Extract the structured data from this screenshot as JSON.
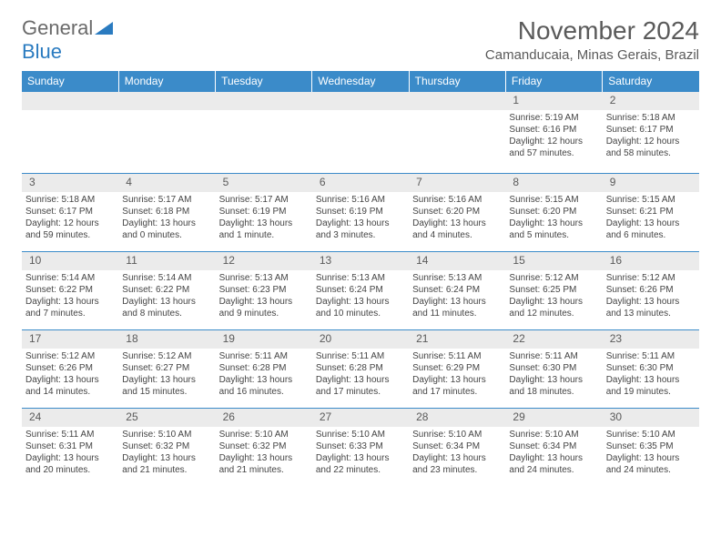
{
  "logo": {
    "text1": "General",
    "text2": "Blue"
  },
  "title": "November 2024",
  "subtitle": "Camanducaia, Minas Gerais, Brazil",
  "colors": {
    "header_bg": "#3b8bc9",
    "header_text": "#ffffff",
    "dayrow_bg": "#ebebeb",
    "border": "#3b8bc9",
    "text": "#444444",
    "logo_gray": "#6a6a6a",
    "logo_blue": "#2a7bc0"
  },
  "day_headers": [
    "Sunday",
    "Monday",
    "Tuesday",
    "Wednesday",
    "Thursday",
    "Friday",
    "Saturday"
  ],
  "weeks": [
    [
      {
        "num": "",
        "sunrise": "",
        "sunset": "",
        "daylight": ""
      },
      {
        "num": "",
        "sunrise": "",
        "sunset": "",
        "daylight": ""
      },
      {
        "num": "",
        "sunrise": "",
        "sunset": "",
        "daylight": ""
      },
      {
        "num": "",
        "sunrise": "",
        "sunset": "",
        "daylight": ""
      },
      {
        "num": "",
        "sunrise": "",
        "sunset": "",
        "daylight": ""
      },
      {
        "num": "1",
        "sunrise": "Sunrise: 5:19 AM",
        "sunset": "Sunset: 6:16 PM",
        "daylight": "Daylight: 12 hours and 57 minutes."
      },
      {
        "num": "2",
        "sunrise": "Sunrise: 5:18 AM",
        "sunset": "Sunset: 6:17 PM",
        "daylight": "Daylight: 12 hours and 58 minutes."
      }
    ],
    [
      {
        "num": "3",
        "sunrise": "Sunrise: 5:18 AM",
        "sunset": "Sunset: 6:17 PM",
        "daylight": "Daylight: 12 hours and 59 minutes."
      },
      {
        "num": "4",
        "sunrise": "Sunrise: 5:17 AM",
        "sunset": "Sunset: 6:18 PM",
        "daylight": "Daylight: 13 hours and 0 minutes."
      },
      {
        "num": "5",
        "sunrise": "Sunrise: 5:17 AM",
        "sunset": "Sunset: 6:19 PM",
        "daylight": "Daylight: 13 hours and 1 minute."
      },
      {
        "num": "6",
        "sunrise": "Sunrise: 5:16 AM",
        "sunset": "Sunset: 6:19 PM",
        "daylight": "Daylight: 13 hours and 3 minutes."
      },
      {
        "num": "7",
        "sunrise": "Sunrise: 5:16 AM",
        "sunset": "Sunset: 6:20 PM",
        "daylight": "Daylight: 13 hours and 4 minutes."
      },
      {
        "num": "8",
        "sunrise": "Sunrise: 5:15 AM",
        "sunset": "Sunset: 6:20 PM",
        "daylight": "Daylight: 13 hours and 5 minutes."
      },
      {
        "num": "9",
        "sunrise": "Sunrise: 5:15 AM",
        "sunset": "Sunset: 6:21 PM",
        "daylight": "Daylight: 13 hours and 6 minutes."
      }
    ],
    [
      {
        "num": "10",
        "sunrise": "Sunrise: 5:14 AM",
        "sunset": "Sunset: 6:22 PM",
        "daylight": "Daylight: 13 hours and 7 minutes."
      },
      {
        "num": "11",
        "sunrise": "Sunrise: 5:14 AM",
        "sunset": "Sunset: 6:22 PM",
        "daylight": "Daylight: 13 hours and 8 minutes."
      },
      {
        "num": "12",
        "sunrise": "Sunrise: 5:13 AM",
        "sunset": "Sunset: 6:23 PM",
        "daylight": "Daylight: 13 hours and 9 minutes."
      },
      {
        "num": "13",
        "sunrise": "Sunrise: 5:13 AM",
        "sunset": "Sunset: 6:24 PM",
        "daylight": "Daylight: 13 hours and 10 minutes."
      },
      {
        "num": "14",
        "sunrise": "Sunrise: 5:13 AM",
        "sunset": "Sunset: 6:24 PM",
        "daylight": "Daylight: 13 hours and 11 minutes."
      },
      {
        "num": "15",
        "sunrise": "Sunrise: 5:12 AM",
        "sunset": "Sunset: 6:25 PM",
        "daylight": "Daylight: 13 hours and 12 minutes."
      },
      {
        "num": "16",
        "sunrise": "Sunrise: 5:12 AM",
        "sunset": "Sunset: 6:26 PM",
        "daylight": "Daylight: 13 hours and 13 minutes."
      }
    ],
    [
      {
        "num": "17",
        "sunrise": "Sunrise: 5:12 AM",
        "sunset": "Sunset: 6:26 PM",
        "daylight": "Daylight: 13 hours and 14 minutes."
      },
      {
        "num": "18",
        "sunrise": "Sunrise: 5:12 AM",
        "sunset": "Sunset: 6:27 PM",
        "daylight": "Daylight: 13 hours and 15 minutes."
      },
      {
        "num": "19",
        "sunrise": "Sunrise: 5:11 AM",
        "sunset": "Sunset: 6:28 PM",
        "daylight": "Daylight: 13 hours and 16 minutes."
      },
      {
        "num": "20",
        "sunrise": "Sunrise: 5:11 AM",
        "sunset": "Sunset: 6:28 PM",
        "daylight": "Daylight: 13 hours and 17 minutes."
      },
      {
        "num": "21",
        "sunrise": "Sunrise: 5:11 AM",
        "sunset": "Sunset: 6:29 PM",
        "daylight": "Daylight: 13 hours and 17 minutes."
      },
      {
        "num": "22",
        "sunrise": "Sunrise: 5:11 AM",
        "sunset": "Sunset: 6:30 PM",
        "daylight": "Daylight: 13 hours and 18 minutes."
      },
      {
        "num": "23",
        "sunrise": "Sunrise: 5:11 AM",
        "sunset": "Sunset: 6:30 PM",
        "daylight": "Daylight: 13 hours and 19 minutes."
      }
    ],
    [
      {
        "num": "24",
        "sunrise": "Sunrise: 5:11 AM",
        "sunset": "Sunset: 6:31 PM",
        "daylight": "Daylight: 13 hours and 20 minutes."
      },
      {
        "num": "25",
        "sunrise": "Sunrise: 5:10 AM",
        "sunset": "Sunset: 6:32 PM",
        "daylight": "Daylight: 13 hours and 21 minutes."
      },
      {
        "num": "26",
        "sunrise": "Sunrise: 5:10 AM",
        "sunset": "Sunset: 6:32 PM",
        "daylight": "Daylight: 13 hours and 21 minutes."
      },
      {
        "num": "27",
        "sunrise": "Sunrise: 5:10 AM",
        "sunset": "Sunset: 6:33 PM",
        "daylight": "Daylight: 13 hours and 22 minutes."
      },
      {
        "num": "28",
        "sunrise": "Sunrise: 5:10 AM",
        "sunset": "Sunset: 6:34 PM",
        "daylight": "Daylight: 13 hours and 23 minutes."
      },
      {
        "num": "29",
        "sunrise": "Sunrise: 5:10 AM",
        "sunset": "Sunset: 6:34 PM",
        "daylight": "Daylight: 13 hours and 24 minutes."
      },
      {
        "num": "30",
        "sunrise": "Sunrise: 5:10 AM",
        "sunset": "Sunset: 6:35 PM",
        "daylight": "Daylight: 13 hours and 24 minutes."
      }
    ]
  ]
}
